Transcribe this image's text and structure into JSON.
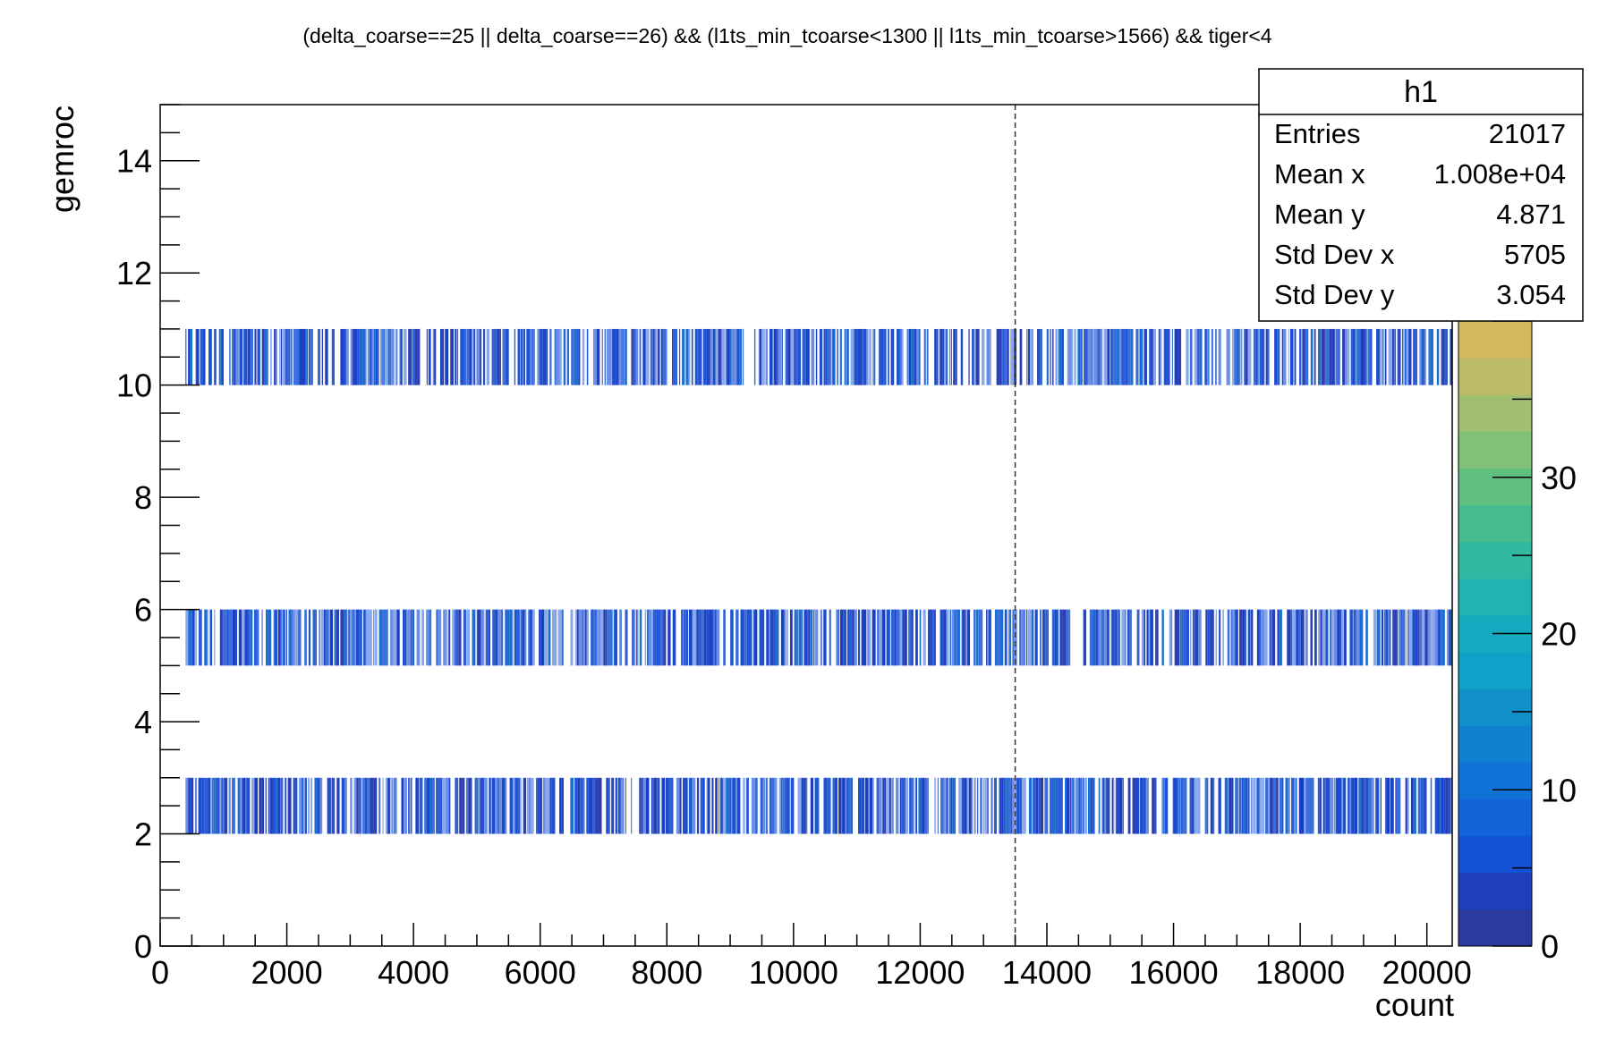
{
  "chart_data": {
    "type": "heatmap",
    "title": "(delta_coarse==25 || delta_coarse==26) && (l1ts_min_tcoarse<1300 || l1ts_min_tcoarse>1566) && tiger<4",
    "xlabel": "count",
    "ylabel": "gemroc",
    "xlim": [
      0,
      20400
    ],
    "ylim": [
      0,
      15
    ],
    "x_ticks": [
      "0",
      "2000",
      "4000",
      "6000",
      "8000",
      "10000",
      "12000",
      "14000",
      "16000",
      "18000",
      "20000"
    ],
    "y_ticks": [
      "0",
      "2",
      "4",
      "6",
      "8",
      "10",
      "12",
      "14"
    ],
    "bands": [
      {
        "y_low": 2,
        "y_high": 3,
        "x_start": 400,
        "x_end": 20400
      },
      {
        "y_low": 5,
        "y_high": 6,
        "x_start": 400,
        "x_end": 20400
      },
      {
        "y_low": 10,
        "y_high": 11,
        "x_start": 400,
        "x_end": 20400
      }
    ],
    "dashed_line_x": 13500,
    "colorbar": {
      "range": [
        0,
        40
      ],
      "ticks": [
        "0",
        "10",
        "20",
        "30"
      ],
      "palette": [
        "#2b3a9e",
        "#1f3fbf",
        "#1652d6",
        "#1262d8",
        "#0f72d6",
        "#1080d0",
        "#1090c8",
        "#10a0c8",
        "#15aac0",
        "#20b3b0",
        "#30b8a0",
        "#48bc90",
        "#60c080",
        "#80c078",
        "#a0c070",
        "#bcbc68",
        "#d4b860"
      ]
    },
    "stats": {
      "name": "h1",
      "rows": [
        {
          "label": "Entries",
          "value": "21017"
        },
        {
          "label": "Mean x",
          "value": "1.008e+04"
        },
        {
          "label": "Mean y",
          "value": "4.871"
        },
        {
          "label": "Std Dev x",
          "value": "5705"
        },
        {
          "label": "Std Dev y",
          "value": "3.054"
        }
      ]
    }
  }
}
